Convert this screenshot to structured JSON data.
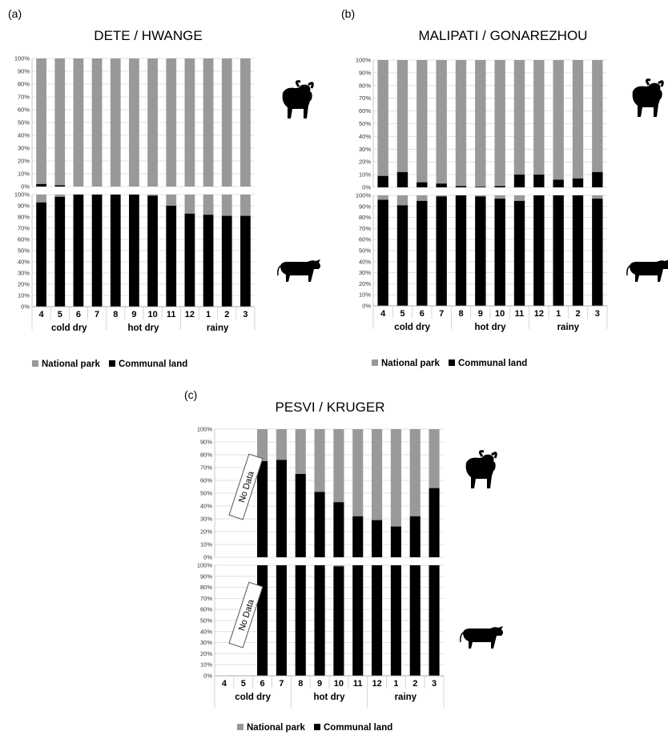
{
  "legend": {
    "national_park": "National park",
    "communal_land": "Communal land"
  },
  "colors": {
    "national_park": "#999999",
    "communal_land": "#000000",
    "grid": "#d9d9d9"
  },
  "icons": {
    "top": "buffalo-icon",
    "bottom": "cattle-icon"
  },
  "chart_data": [
    {
      "label": "(a)",
      "title": "DETE / HWANGE",
      "type": "bar",
      "stacked": true,
      "y_ticks": [
        "0%",
        "10%",
        "20%",
        "30%",
        "40%",
        "50%",
        "60%",
        "70%",
        "80%",
        "90%",
        "100%"
      ],
      "categories": [
        "4",
        "5",
        "6",
        "7",
        "8",
        "9",
        "10",
        "11",
        "12",
        "1",
        "2",
        "3"
      ],
      "seasons": [
        {
          "name": "cold dry",
          "months": [
            "4",
            "5",
            "6",
            "7"
          ]
        },
        {
          "name": "hot dry",
          "months": [
            "8",
            "9",
            "10",
            "11"
          ]
        },
        {
          "name": "rainy",
          "months": [
            "12",
            "1",
            "2",
            "3"
          ]
        }
      ],
      "panels": [
        {
          "animal": "buffalo",
          "communal_land_pct": [
            2,
            1,
            0,
            0,
            0,
            0,
            0,
            0,
            0,
            0,
            0,
            0
          ]
        },
        {
          "animal": "cattle",
          "communal_land_pct": [
            93,
            98,
            100,
            100,
            100,
            100,
            99,
            90,
            83,
            82,
            81,
            81
          ]
        }
      ]
    },
    {
      "label": "(b)",
      "title": "MALIPATI / GONAREZHOU",
      "type": "bar",
      "stacked": true,
      "y_ticks": [
        "0%",
        "10%",
        "20%",
        "30%",
        "40%",
        "50%",
        "60%",
        "70%",
        "80%",
        "90%",
        "100%"
      ],
      "categories": [
        "4",
        "5",
        "6",
        "7",
        "8",
        "9",
        "10",
        "11",
        "12",
        "1",
        "2",
        "3"
      ],
      "seasons": [
        {
          "name": "cold dry",
          "months": [
            "4",
            "5",
            "6",
            "7"
          ]
        },
        {
          "name": "hot dry",
          "months": [
            "8",
            "9",
            "10",
            "11"
          ]
        },
        {
          "name": "rainy",
          "months": [
            "12",
            "1",
            "2",
            "3"
          ]
        }
      ],
      "panels": [
        {
          "animal": "buffalo",
          "communal_land_pct": [
            9,
            12,
            4,
            3,
            1,
            0.5,
            1,
            10,
            10,
            6,
            7,
            12
          ]
        },
        {
          "animal": "cattle",
          "communal_land_pct": [
            96,
            91,
            95,
            99,
            100,
            99,
            97,
            95,
            100,
            100,
            100,
            97
          ]
        }
      ]
    },
    {
      "label": "(c)",
      "title": "PESVI / KRUGER",
      "type": "bar",
      "stacked": true,
      "no_data_text": "No Data",
      "y_ticks": [
        "0%",
        "10%",
        "20%",
        "30%",
        "40%",
        "50%",
        "60%",
        "70%",
        "80%",
        "90%",
        "100%"
      ],
      "categories": [
        "4",
        "5",
        "6",
        "7",
        "8",
        "9",
        "10",
        "11",
        "12",
        "1",
        "2",
        "3"
      ],
      "seasons": [
        {
          "name": "cold dry",
          "months": [
            "4",
            "5",
            "6",
            "7"
          ]
        },
        {
          "name": "hot dry",
          "months": [
            "8",
            "9",
            "10",
            "11"
          ]
        },
        {
          "name": "rainy",
          "months": [
            "12",
            "1",
            "2",
            "3"
          ]
        }
      ],
      "panels": [
        {
          "animal": "buffalo",
          "communal_land_pct": [
            null,
            null,
            75,
            76,
            65,
            51,
            43,
            32,
            29,
            24,
            32,
            54
          ]
        },
        {
          "animal": "cattle",
          "communal_land_pct": [
            null,
            null,
            100,
            100,
            100,
            100,
            99,
            100,
            100,
            100,
            100,
            100
          ]
        }
      ]
    }
  ]
}
